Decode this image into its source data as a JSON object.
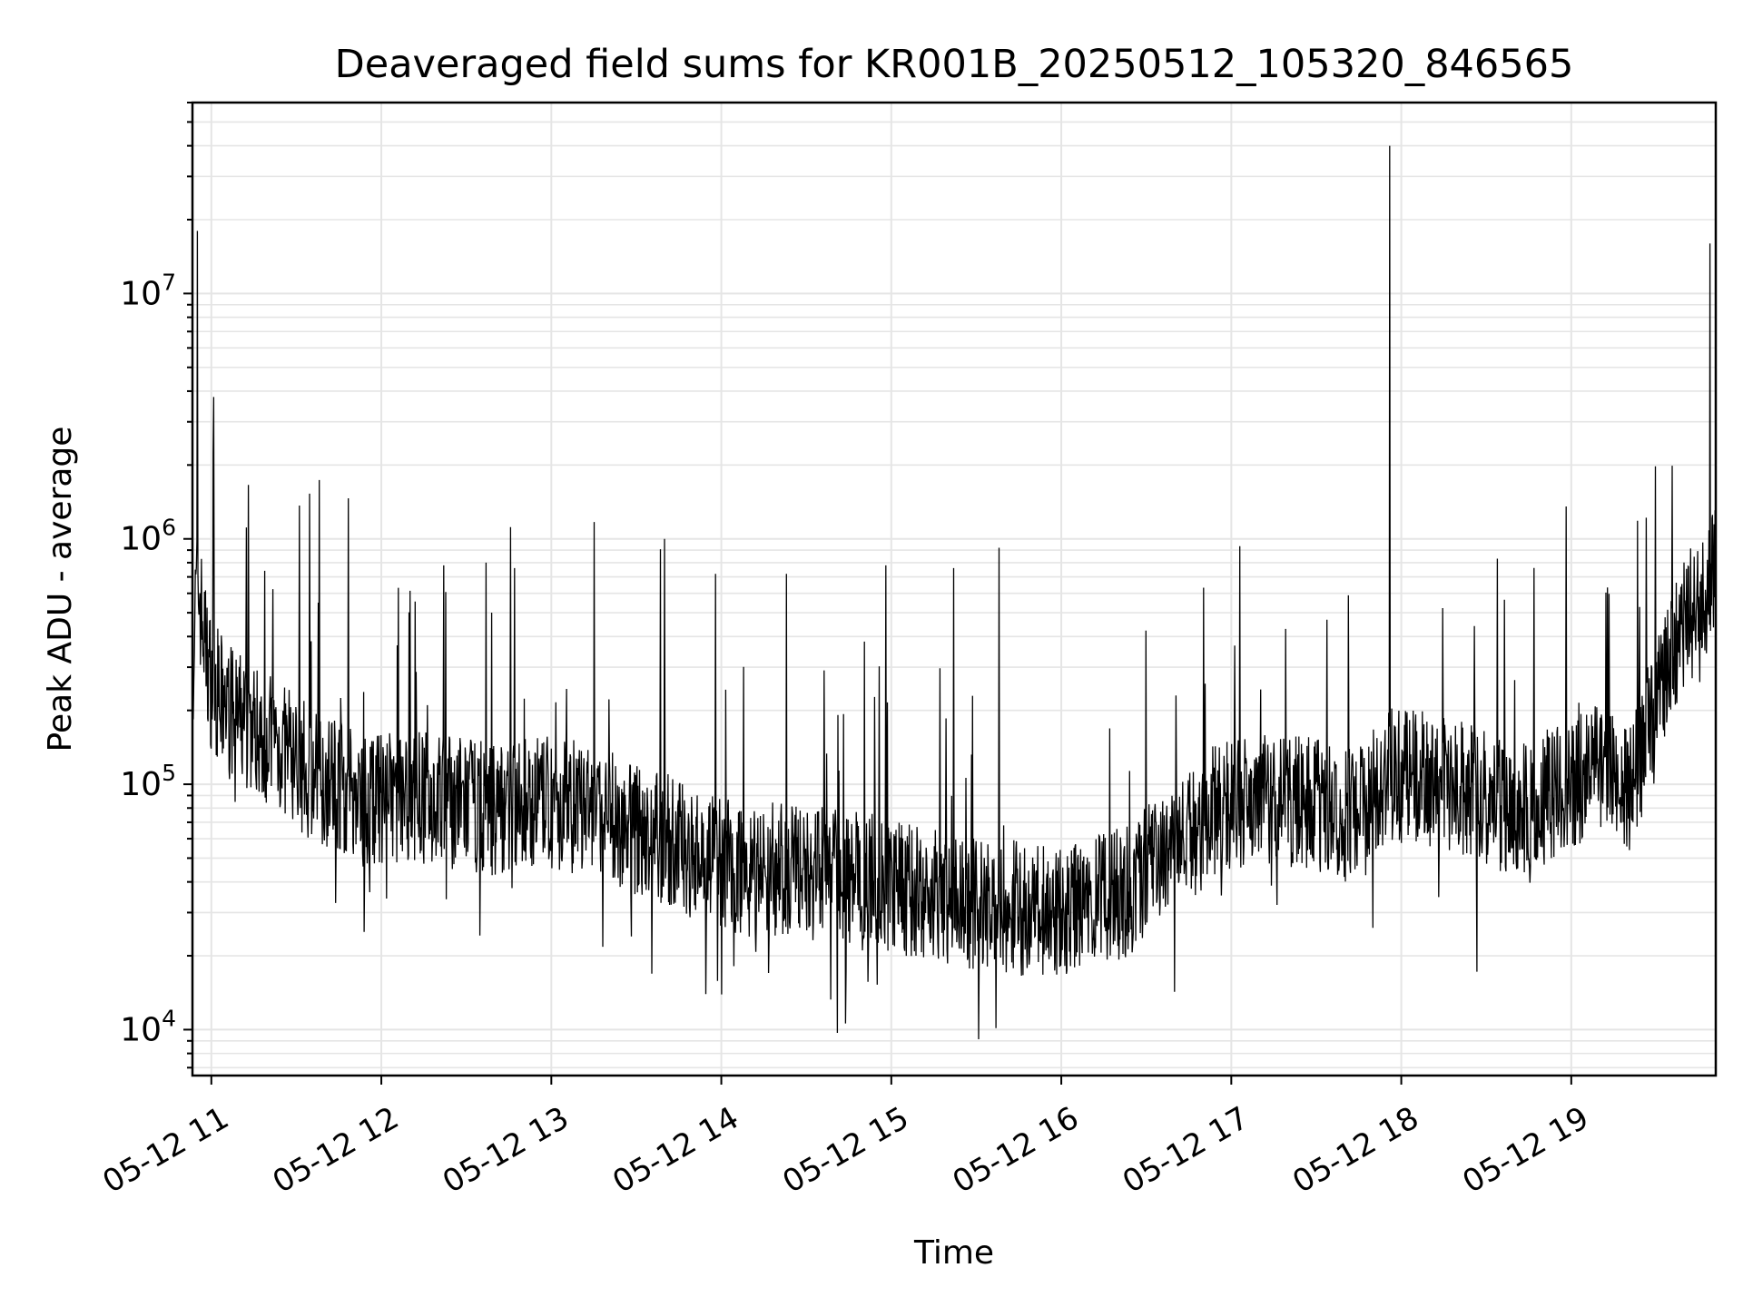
{
  "chart_data": {
    "type": "line",
    "title": "Deaveraged field sums for KR001B_20250512_105320_846565",
    "xlabel": "Time",
    "ylabel": "Peak ADU - average",
    "yscale": "log",
    "ylim": [
      6500,
      60000000
    ],
    "xlim": [
      "2025-05-12 10:53:20",
      "2025-05-12 19:51:00"
    ],
    "grid": true,
    "line_color": "#000000",
    "grid_color": "#e5e5e5",
    "x_ticks": [
      {
        "value": "2025-05-12 11:00",
        "label": "05-12 11"
      },
      {
        "value": "2025-05-12 12:00",
        "label": "05-12 12"
      },
      {
        "value": "2025-05-12 13:00",
        "label": "05-12 13"
      },
      {
        "value": "2025-05-12 14:00",
        "label": "05-12 14"
      },
      {
        "value": "2025-05-12 15:00",
        "label": "05-12 15"
      },
      {
        "value": "2025-05-12 16:00",
        "label": "05-12 16"
      },
      {
        "value": "2025-05-12 17:00",
        "label": "05-12 17"
      },
      {
        "value": "2025-05-12 18:00",
        "label": "05-12 18"
      },
      {
        "value": "2025-05-12 19:00",
        "label": "05-12 19"
      }
    ],
    "y_ticks": [
      {
        "value": 10000,
        "base": "10",
        "exp": "4"
      },
      {
        "value": 100000,
        "base": "10",
        "exp": "5"
      },
      {
        "value": 1000000,
        "base": "10",
        "exp": "6"
      },
      {
        "value": 10000000,
        "base": "10",
        "exp": "7"
      }
    ],
    "series": [
      {
        "x": [
          "2025-05-12 10:53",
          "2025-05-12 10:55",
          "2025-05-12 10:58",
          "2025-05-12 11:00",
          "2025-05-12 11:05",
          "2025-05-12 11:15",
          "2025-05-12 11:25",
          "2025-05-12 11:35",
          "2025-05-12 11:45",
          "2025-05-12 11:55",
          "2025-05-12 12:10",
          "2025-05-12 12:25",
          "2025-05-12 12:40",
          "2025-05-12 12:55",
          "2025-05-12 13:10",
          "2025-05-12 13:25",
          "2025-05-12 13:40",
          "2025-05-12 13:55",
          "2025-05-12 14:10",
          "2025-05-12 14:25",
          "2025-05-12 14:40",
          "2025-05-12 14:55",
          "2025-05-12 15:10",
          "2025-05-12 15:25",
          "2025-05-12 15:40",
          "2025-05-12 15:55",
          "2025-05-12 16:10",
          "2025-05-12 16:25",
          "2025-05-12 16:40",
          "2025-05-12 16:55",
          "2025-05-12 17:10",
          "2025-05-12 17:25",
          "2025-05-12 17:40",
          "2025-05-12 17:55",
          "2025-05-12 18:10",
          "2025-05-12 18:25",
          "2025-05-12 18:40",
          "2025-05-12 18:55",
          "2025-05-12 19:10",
          "2025-05-12 19:20",
          "2025-05-12 19:30",
          "2025-05-12 19:40",
          "2025-05-12 19:51"
        ],
        "y": [
          250000,
          700000,
          350000,
          260000,
          200000,
          170000,
          140000,
          110000,
          100000,
          85000,
          90000,
          85000,
          80000,
          85000,
          80000,
          70000,
          60000,
          50000,
          45000,
          45000,
          42000,
          40000,
          36000,
          33000,
          32000,
          30000,
          32000,
          38000,
          55000,
          80000,
          90000,
          85000,
          75000,
          110000,
          105000,
          95000,
          75000,
          95000,
          120000,
          95000,
          200000,
          450000,
          750000
        ]
      }
    ],
    "spikes": [
      {
        "x": "2025-05-12 10:55",
        "y": 18000000
      },
      {
        "x": "2025-05-12 12:22",
        "y": 780000
      },
      {
        "x": "2025-05-12 12:37",
        "y": 800000
      },
      {
        "x": "2025-05-12 12:47",
        "y": 760000
      },
      {
        "x": "2025-05-12 13:40",
        "y": 1000000
      },
      {
        "x": "2025-05-12 13:58",
        "y": 720000
      },
      {
        "x": "2025-05-12 14:23",
        "y": 720000
      },
      {
        "x": "2025-05-12 14:58",
        "y": 780000
      },
      {
        "x": "2025-05-12 15:22",
        "y": 760000
      },
      {
        "x": "2025-05-12 15:38",
        "y": 920000
      },
      {
        "x": "2025-05-12 17:56",
        "y": 40000000
      },
      {
        "x": "2025-05-12 19:49",
        "y": 16000000
      },
      {
        "x": "2025-05-12 14:41",
        "y": 9700
      },
      {
        "x": "2025-05-12 11:54",
        "y": 25000
      },
      {
        "x": "2025-05-12 17:50",
        "y": 26000
      }
    ]
  }
}
